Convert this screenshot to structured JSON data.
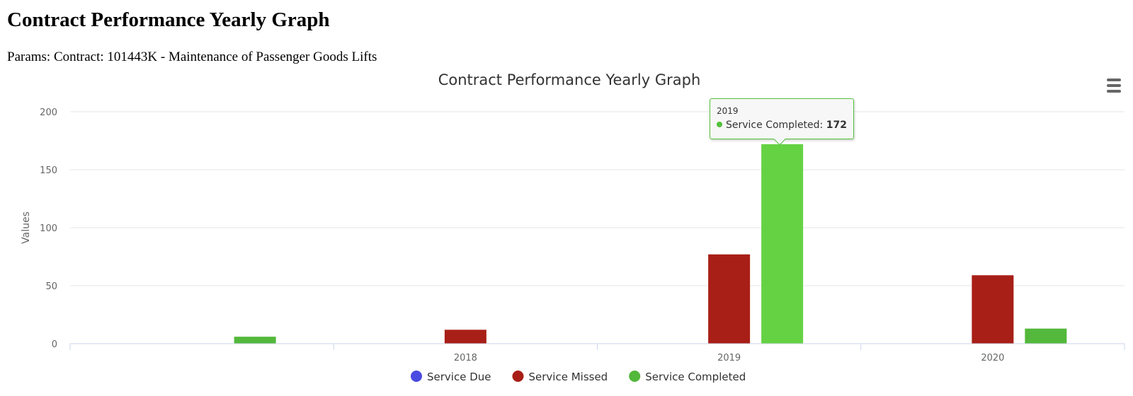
{
  "report": {
    "title": "Contract Performance Yearly Graph",
    "params": "Params: Contract: 101443K - Maintenance of Passenger Goods Lifts"
  },
  "chart_data": {
    "type": "bar",
    "title": "Contract Performance Yearly Graph",
    "ylabel": "Values",
    "xlabel": "",
    "ylim": [
      0,
      200
    ],
    "yticks": [
      0,
      50,
      100,
      150,
      200
    ],
    "categories": [
      "",
      "2018",
      "2019",
      "2020"
    ],
    "series": [
      {
        "name": "Service Due",
        "color": "#4a4be0",
        "values": [
          0,
          0,
          0,
          0
        ]
      },
      {
        "name": "Service Missed",
        "color": "#a81f17",
        "values": [
          0,
          12,
          77,
          59
        ]
      },
      {
        "name": "Service Completed",
        "color": "#53b83b",
        "values": [
          6,
          0,
          172,
          13
        ]
      }
    ],
    "grid": true,
    "legend": "bottom-center",
    "tooltip": {
      "header": "2019",
      "series": "Service Completed",
      "label": "Service Completed: ",
      "value": "172",
      "color": "#53c13b",
      "highlight_color": "#65d243"
    }
  },
  "menu": {
    "icon": "hamburger-menu-icon"
  }
}
